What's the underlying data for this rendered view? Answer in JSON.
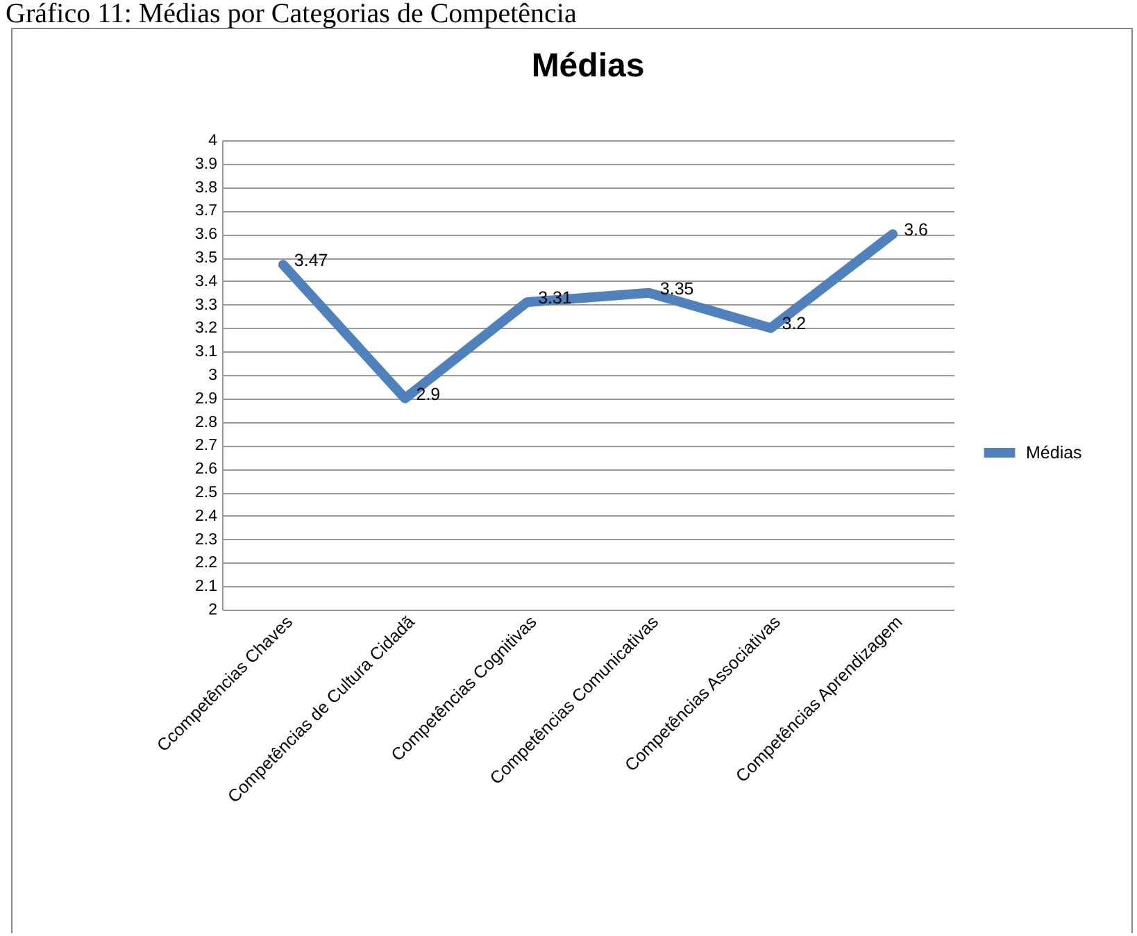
{
  "chart_data": {
    "type": "line",
    "title": "Médias",
    "annotations": [
      "Gráfico 11: Médias por Categorias de Competência"
    ],
    "categories": [
      "Ccompetências Chaves",
      "Competências de Cultura Cidadã",
      "Competências Cognitivas",
      "Competências Comunicativas",
      "Competências Associativas",
      "Competências Aprendizagem"
    ],
    "series": [
      {
        "name": "Médias",
        "color": "#4f81bd",
        "values": [
          3.47,
          2.9,
          3.31,
          3.35,
          3.2,
          3.6
        ]
      }
    ],
    "ylim": [
      2,
      4
    ],
    "yticks": [
      2,
      2.1,
      2.2,
      2.3,
      2.4,
      2.5,
      2.6,
      2.7,
      2.8,
      2.9,
      3,
      3.1,
      3.2,
      3.3,
      3.4,
      3.5,
      3.6,
      3.7,
      3.8,
      3.9,
      4
    ],
    "grid": "y",
    "legend": "right",
    "data_labels": true,
    "marker": "none",
    "line_style": "solid"
  }
}
